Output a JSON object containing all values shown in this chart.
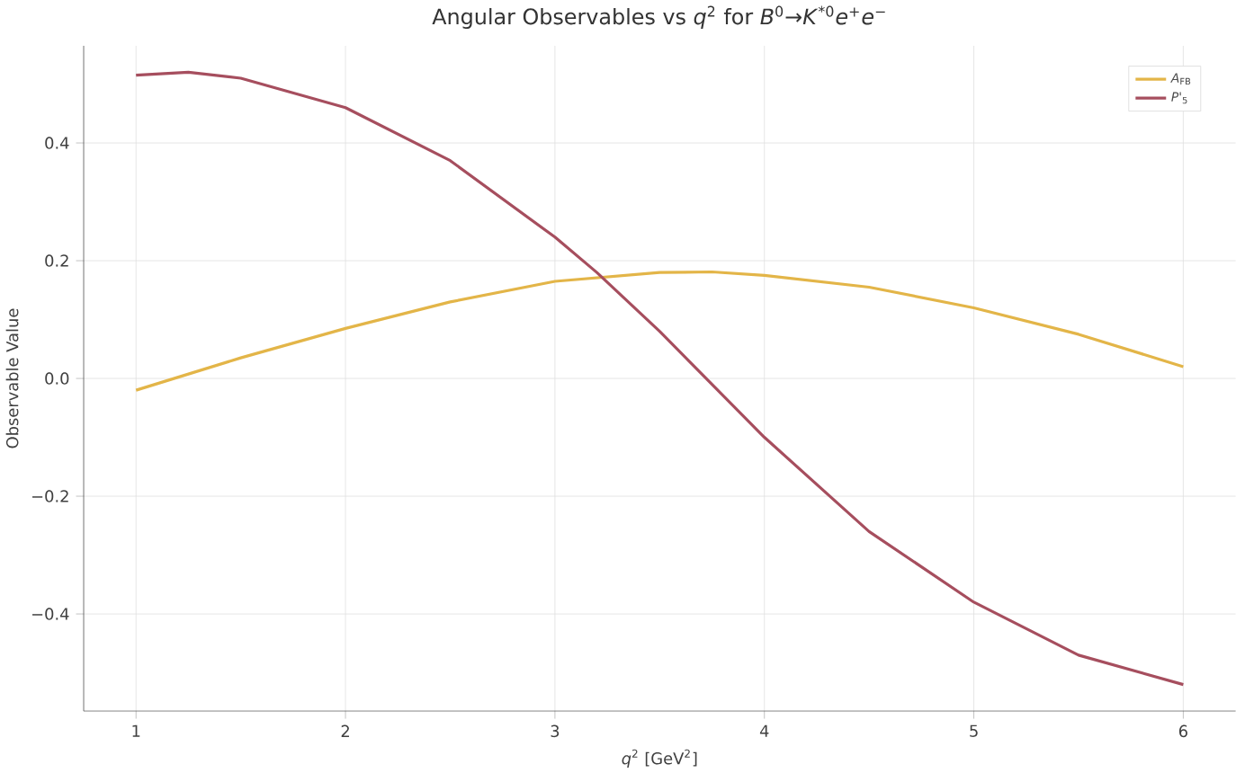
{
  "chart_data": {
    "type": "line",
    "title": "Angular Observables vs *q*$^{2}$ for *B*$^{0}$→*K*$^{*0}$*e*$^{+}$*e*$^{−}$",
    "xlabel": "*q*$^{2}$ [GeV$^{2}$]",
    "ylabel": "Observable Value",
    "xlim": [
      0.75,
      6.25
    ],
    "ylim": [
      -0.565,
      0.565
    ],
    "xticks": [
      1,
      2,
      3,
      4,
      5,
      6
    ],
    "yticks": [
      {
        "value": -0.4,
        "label": "−0.4"
      },
      {
        "value": -0.2,
        "label": "−0.2"
      },
      {
        "value": 0.0,
        "label": "0.0"
      },
      {
        "value": 0.2,
        "label": "0.2"
      },
      {
        "value": 0.4,
        "label": "0.4"
      }
    ],
    "grid": true,
    "legend": "top right",
    "series": [
      {
        "name": "*A*$_{FB}$",
        "color": "#e3b548",
        "x": [
          1,
          1.5,
          2,
          2.5,
          3,
          3.5,
          3.75,
          4,
          4.5,
          5,
          5.5,
          6
        ],
        "values": [
          -0.02,
          0.035,
          0.085,
          0.13,
          0.165,
          0.18,
          0.181,
          0.175,
          0.155,
          0.12,
          0.075,
          0.02
        ]
      },
      {
        "name": "*P'*$_{5}$",
        "color": "#a64e5e",
        "x": [
          1,
          1.25,
          1.5,
          2,
          2.5,
          3,
          3.2,
          3.5,
          4,
          4.5,
          5,
          5.5,
          6
        ],
        "values": [
          0.515,
          0.52,
          0.51,
          0.46,
          0.37,
          0.24,
          0.18,
          0.08,
          -0.1,
          -0.26,
          -0.38,
          -0.47,
          -0.52
        ]
      }
    ]
  }
}
